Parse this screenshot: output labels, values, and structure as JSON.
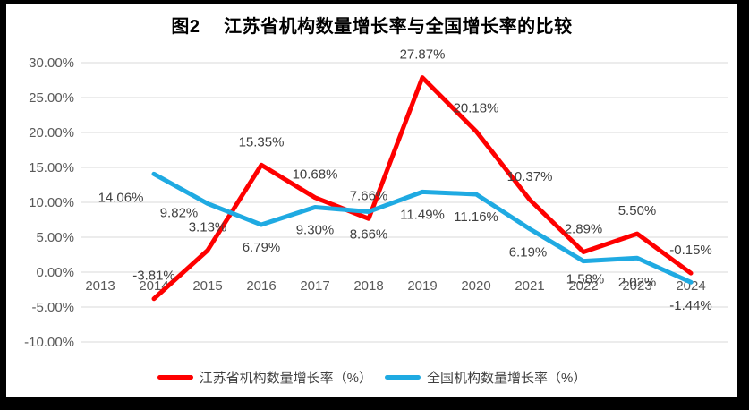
{
  "chart_data": {
    "type": "line",
    "title": "图2　 江苏省机构数量增长率与全国增长率的比较",
    "categories": [
      "2013",
      "2014",
      "2015",
      "2016",
      "2017",
      "2018",
      "2019",
      "2020",
      "2021",
      "2022",
      "2023",
      "2024"
    ],
    "series": [
      {
        "name": "江苏省机构数量增长率（%）",
        "color": "#FE0000",
        "values": [
          null,
          -3.81,
          3.13,
          15.35,
          10.68,
          7.66,
          27.87,
          20.18,
          10.37,
          2.89,
          5.5,
          -0.15
        ]
      },
      {
        "name": "全国机构数量增长率（%）",
        "color": "#1FAAE2",
        "values": [
          null,
          14.06,
          9.82,
          6.79,
          9.3,
          8.66,
          11.49,
          11.16,
          6.19,
          1.58,
          2.02,
          -1.44
        ]
      }
    ],
    "y_axis": {
      "max": 30,
      "min": -10,
      "step": 5,
      "tick_labels": [
        "30.00%",
        "25.00%",
        "20.00%",
        "15.00%",
        "10.00%",
        "5.00%",
        "0.00%",
        "-5.00%",
        "-10.00%"
      ]
    },
    "grid": true,
    "legend_position": "bottom",
    "data_labels": true
  },
  "colors": {
    "frame": "#000000",
    "chart_background": "#FFFFFF",
    "gridline": "#D9D9D9",
    "axis_text": "#595959",
    "data_label_text": "#404040",
    "title_text": "#000000",
    "legend_text": "#404040"
  }
}
